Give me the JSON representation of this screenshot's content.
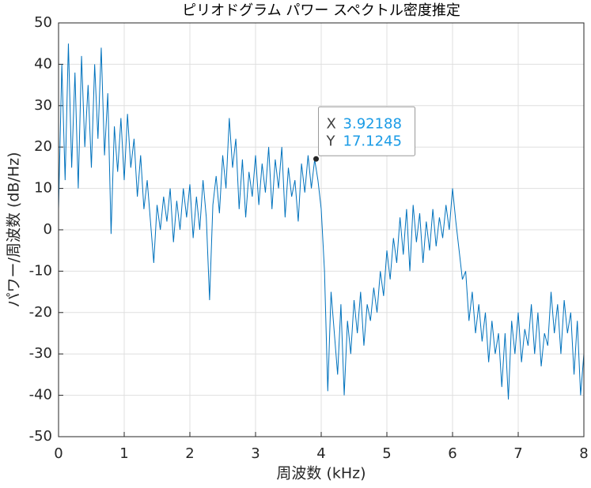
{
  "chart_data": {
    "type": "line",
    "title": "ピリオドグラム パワー スペクトル密度推定",
    "xlabel": "周波数 (kHz)",
    "ylabel": "パワー/周波数 (dB/Hz)",
    "x": [
      0,
      0.05,
      0.1,
      0.15,
      0.2,
      0.25,
      0.3,
      0.35,
      0.4,
      0.45,
      0.5,
      0.55,
      0.6,
      0.65,
      0.7,
      0.75,
      0.8,
      0.85,
      0.9,
      0.95,
      1,
      1.05,
      1.1,
      1.15,
      1.2,
      1.25,
      1.3,
      1.35,
      1.4,
      1.45,
      1.5,
      1.55,
      1.6,
      1.65,
      1.7,
      1.75,
      1.8,
      1.85,
      1.9,
      1.95,
      2,
      2.05,
      2.1,
      2.15,
      2.2,
      2.25,
      2.3,
      2.35,
      2.4,
      2.45,
      2.5,
      2.55,
      2.6,
      2.65,
      2.7,
      2.75,
      2.8,
      2.85,
      2.9,
      2.95,
      3,
      3.05,
      3.1,
      3.15,
      3.2,
      3.25,
      3.3,
      3.35,
      3.4,
      3.45,
      3.5,
      3.55,
      3.6,
      3.65,
      3.7,
      3.75,
      3.8,
      3.85,
      3.9,
      3.95,
      4,
      4.05,
      4.1,
      4.15,
      4.2,
      4.25,
      4.3,
      4.35,
      4.4,
      4.45,
      4.5,
      4.55,
      4.6,
      4.65,
      4.7,
      4.75,
      4.8,
      4.85,
      4.9,
      4.95,
      5,
      5.05,
      5.1,
      5.15,
      5.2,
      5.25,
      5.3,
      5.35,
      5.4,
      5.45,
      5.5,
      5.55,
      5.6,
      5.65,
      5.7,
      5.75,
      5.8,
      5.85,
      5.9,
      5.95,
      6,
      6.05,
      6.1,
      6.15,
      6.2,
      6.25,
      6.3,
      6.35,
      6.4,
      6.45,
      6.5,
      6.55,
      6.6,
      6.65,
      6.7,
      6.75,
      6.8,
      6.85,
      6.9,
      6.95,
      7,
      7.05,
      7.1,
      7.15,
      7.2,
      7.25,
      7.3,
      7.35,
      7.4,
      7.45,
      7.5,
      7.55,
      7.6,
      7.65,
      7.7,
      7.75,
      7.8,
      7.85,
      7.9,
      7.95,
      8
    ],
    "series": [
      {
        "color": "#0072bd",
        "values": [
          5,
          40,
          12,
          45,
          15,
          38,
          10,
          42,
          20,
          35,
          15,
          40,
          22,
          44,
          18,
          33,
          -1,
          25,
          14,
          27,
          12,
          28,
          15,
          22,
          8,
          18,
          5,
          12,
          2,
          -8,
          6,
          0,
          8,
          2,
          10,
          -3,
          7,
          0,
          10,
          3,
          11,
          -2,
          8,
          0,
          12,
          3,
          -17,
          6,
          13,
          4,
          18,
          10,
          27,
          15,
          22,
          5,
          17,
          3,
          14,
          8,
          18,
          6,
          16,
          9,
          20,
          5,
          17,
          10,
          20,
          3,
          15,
          8,
          12,
          2,
          16,
          9,
          18,
          10,
          17,
          12,
          5,
          -10,
          -39,
          -15,
          -25,
          -35,
          -18,
          -40,
          -22,
          -30,
          -17,
          -25,
          -15,
          -28,
          -18,
          -22,
          -14,
          -20,
          -10,
          -16,
          -5,
          -12,
          -2,
          -8,
          3,
          -6,
          5,
          -10,
          6,
          -3,
          4,
          -8,
          2,
          -5,
          5,
          -4,
          3,
          -2,
          6,
          0,
          10,
          2,
          -5,
          -12,
          -10,
          -22,
          -15,
          -25,
          -18,
          -27,
          -20,
          -32,
          -22,
          -30,
          -25,
          -38,
          -25,
          -41,
          -22,
          -30,
          -20,
          -32,
          -24,
          -28,
          -18,
          -30,
          -20,
          -33,
          -25,
          -28,
          -15,
          -25,
          -18,
          -30,
          -17,
          -25,
          -20,
          -35,
          -22,
          -40,
          -30
        ]
      }
    ],
    "xlim": [
      0,
      8
    ],
    "xticks": [
      0,
      1,
      2,
      3,
      4,
      5,
      6,
      7,
      8
    ],
    "ylim": [
      -50,
      50
    ],
    "yticks": [
      -50,
      -40,
      -30,
      -20,
      -10,
      0,
      10,
      20,
      30,
      40,
      50
    ],
    "grid": true,
    "datatip": {
      "x_label": "X",
      "x": 3.92188,
      "y_label": "Y",
      "y": 17.1245
    }
  }
}
